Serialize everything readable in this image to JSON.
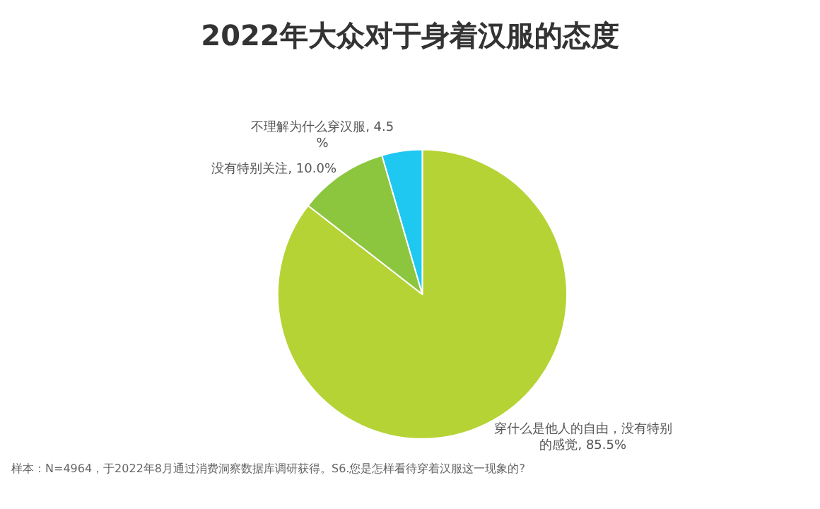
{
  "chart_data": {
    "type": "pie",
    "title": "2022年大众对于身着汉服的态度",
    "categories": [
      "穿什么是他人的自由，没有特别的感觉",
      "没有特别关注",
      "不理解为什么穿汉服"
    ],
    "values": [
      85.5,
      10.0,
      4.5
    ],
    "value_labels": [
      "85.5%",
      "10.0%",
      "4.5%"
    ],
    "colors": [
      "#b5d334",
      "#8cc63f",
      "#1ec8f0"
    ],
    "legend": false,
    "annotations": [
      "样本：N=4964，于2022年8月通过消费洞察数据库调研获得。S6.您是怎样看待穿着汉服这一现象的?"
    ]
  }
}
